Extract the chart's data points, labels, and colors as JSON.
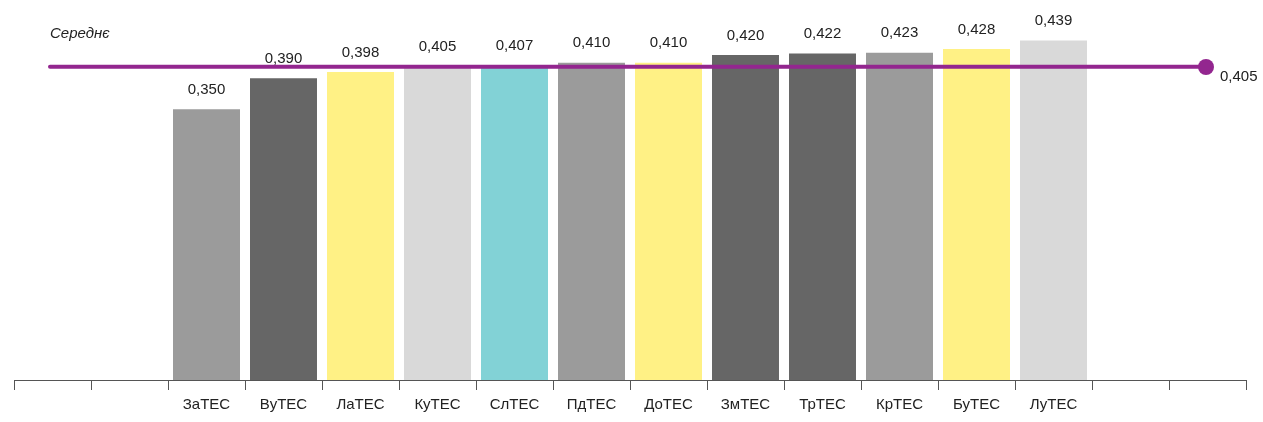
{
  "chart_data": {
    "type": "bar",
    "categories": [
      null,
      null,
      "ЗаТЕС",
      "ВуТЕС",
      "ЛаТЕС",
      "КуТЕС",
      "СлТЕС",
      "ПдТЕС",
      "ДоТЕС",
      "ЗмТЕС",
      "ТрТЕС",
      "КрТЕС",
      "БуТЕС",
      "ЛуТЕС",
      null,
      null
    ],
    "values": [
      null,
      null,
      0.35,
      0.39,
      0.398,
      0.405,
      0.407,
      0.41,
      0.41,
      0.42,
      0.422,
      0.423,
      0.428,
      0.439,
      null,
      null
    ],
    "colors": [
      "#9b9b9b",
      "#9b9b9b",
      "#9b9b9b",
      "#666666",
      "#fff185",
      "#d9d9d9",
      "#82d2d6",
      "#9b9b9b",
      "#fff185",
      "#666666",
      "#666666",
      "#9b9b9b",
      "#fff185",
      "#d9d9d9",
      "#9b9b9b",
      "#9b9b9b"
    ],
    "value_labels": [
      null,
      null,
      "0,350",
      "0,390",
      "0,398",
      "0,405",
      "0,407",
      "0,410",
      "0,410",
      "0,420",
      "0,422",
      "0,423",
      "0,428",
      "0,439",
      null,
      null
    ],
    "tick_labels": "x",
    "grid": false,
    "legend": false,
    "ref_lines": [
      {
        "axis": "y",
        "value": 0.405,
        "label": "Середнє",
        "color": "#93268f"
      }
    ],
    "annotations": [
      "0,405"
    ]
  }
}
